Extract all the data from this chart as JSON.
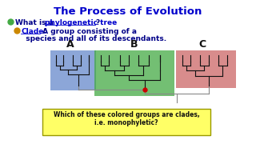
{
  "title": "The Process of Evolution",
  "title_color": "#0000CC",
  "bg_color": "#FFFFFF",
  "bullet1_dot_color": "#44AA44",
  "bullet2_dot_color": "#CC8800",
  "label_A": "A",
  "label_B": "B",
  "label_C": "C",
  "box_A_color": "#6688CC",
  "box_B_color": "#44AA44",
  "box_C_color": "#CC6666",
  "question_bg": "#FFFF66",
  "question_text": "Which of these colored groups are clades,\ni.e. monophyletic?",
  "tree_line_color": "#111111",
  "root_line_color": "#888888",
  "red_dot_color": "#CC0000"
}
